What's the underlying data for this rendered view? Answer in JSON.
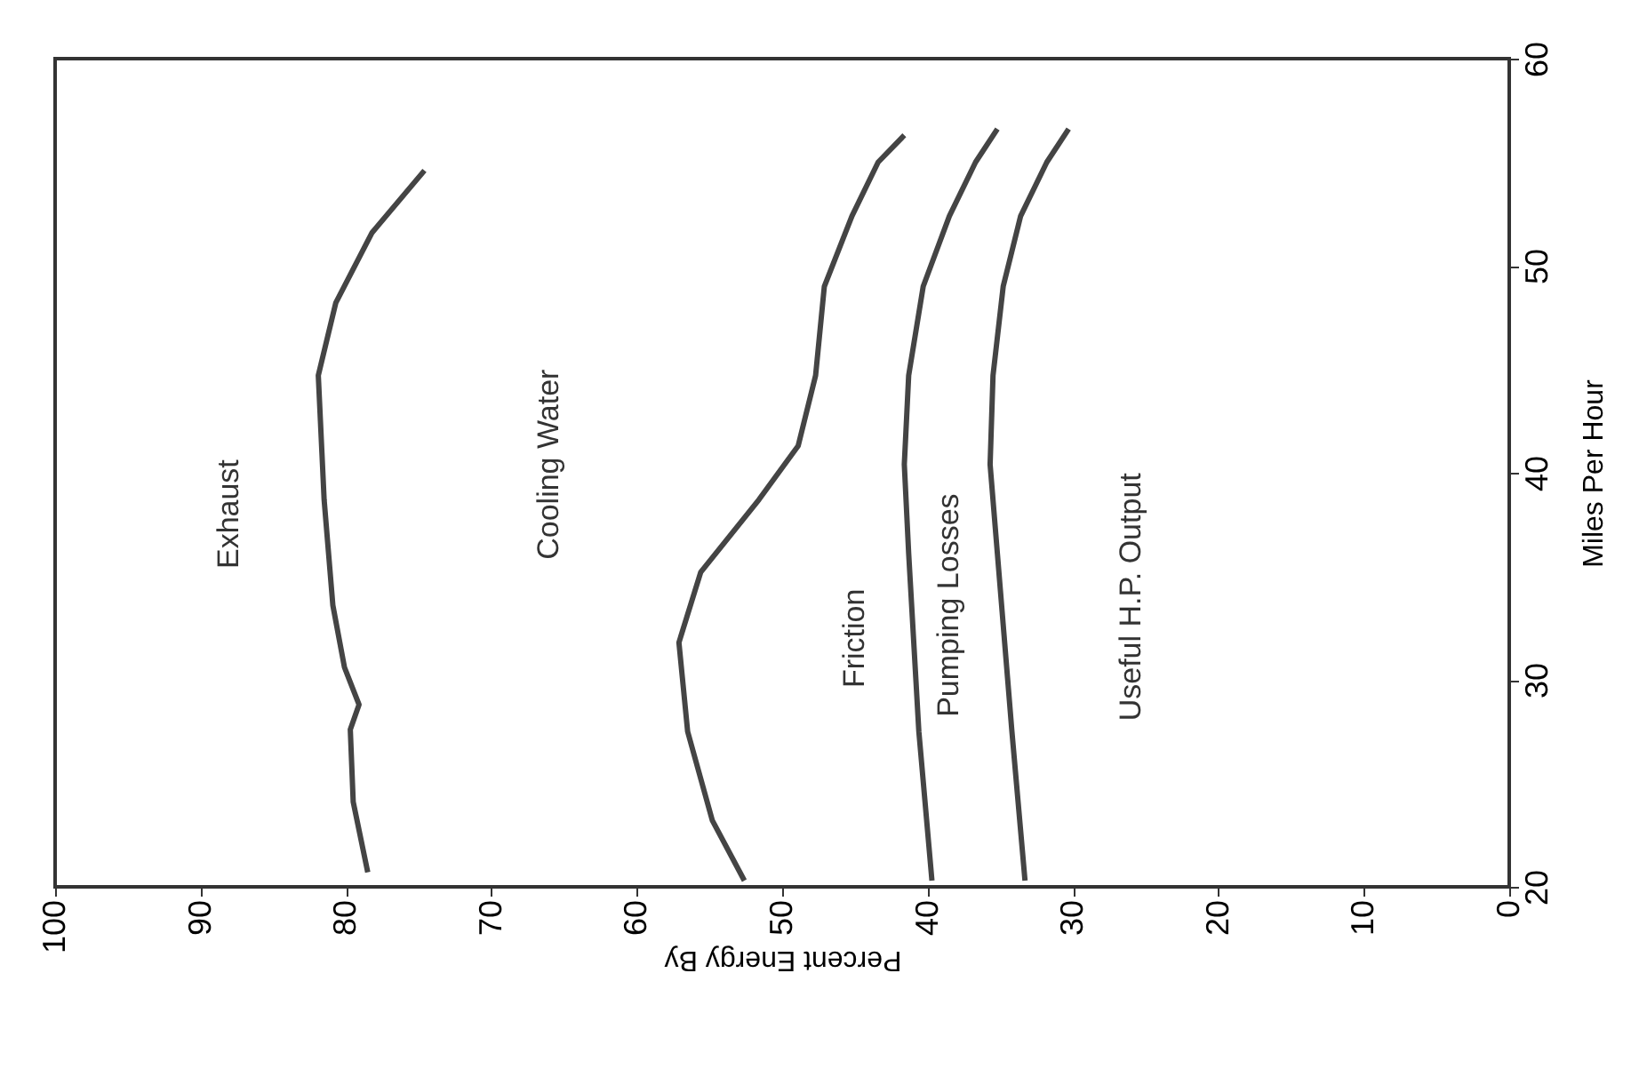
{
  "chart_data": {
    "type": "line",
    "xlabel": "Percent Energy By",
    "ylabel": "Miles Per Hour",
    "xlim": [
      100,
      0
    ],
    "xticks": [
      100,
      90,
      80,
      70,
      60,
      50,
      40,
      30,
      20,
      10,
      0
    ],
    "ylim": [
      20,
      60
    ],
    "yticks": [
      20,
      30,
      40,
      50,
      60
    ],
    "grid": false,
    "line_style": "solid",
    "marker": "none",
    "series": [
      {
        "color": "#444444",
        "x": [
          78.5,
          79.5,
          79.7,
          79.1,
          80.1,
          80.9,
          81.5,
          81.9,
          80.7,
          78.2,
          74.6
        ],
        "values": [
          20.7,
          24.1,
          27.6,
          28.8,
          30.6,
          33.6,
          38.7,
          44.7,
          48.2,
          51.6,
          54.6
        ]
      },
      {
        "color": "#444444",
        "x": [
          52.6,
          54.8,
          56.5,
          57.1,
          55.6,
          51.6,
          48.9,
          47.7,
          47.1,
          45.2,
          43.4,
          41.6
        ],
        "values": [
          20.3,
          23.2,
          27.5,
          31.8,
          35.2,
          38.7,
          41.3,
          44.7,
          49.0,
          52.4,
          55.0,
          56.3
        ]
      },
      {
        "color": "#444444",
        "x": [
          39.7,
          40.6,
          41.3,
          41.6,
          41.3,
          40.3,
          38.5,
          36.7,
          35.2
        ],
        "values": [
          20.3,
          27.5,
          36.1,
          40.4,
          44.7,
          49.0,
          52.4,
          55.0,
          56.6
        ]
      },
      {
        "color": "#444444",
        "x": [
          33.3,
          34.2,
          35.2,
          35.7,
          35.5,
          34.8,
          33.6,
          31.8,
          30.3
        ],
        "values": [
          20.3,
          27.5,
          36.1,
          40.4,
          44.7,
          49.0,
          52.4,
          55.0,
          56.6
        ]
      }
    ],
    "annotations": [
      "Exhaust",
      "Cooling Water",
      "Friction",
      "Pumping Losses",
      "Useful H.P. Output"
    ]
  }
}
